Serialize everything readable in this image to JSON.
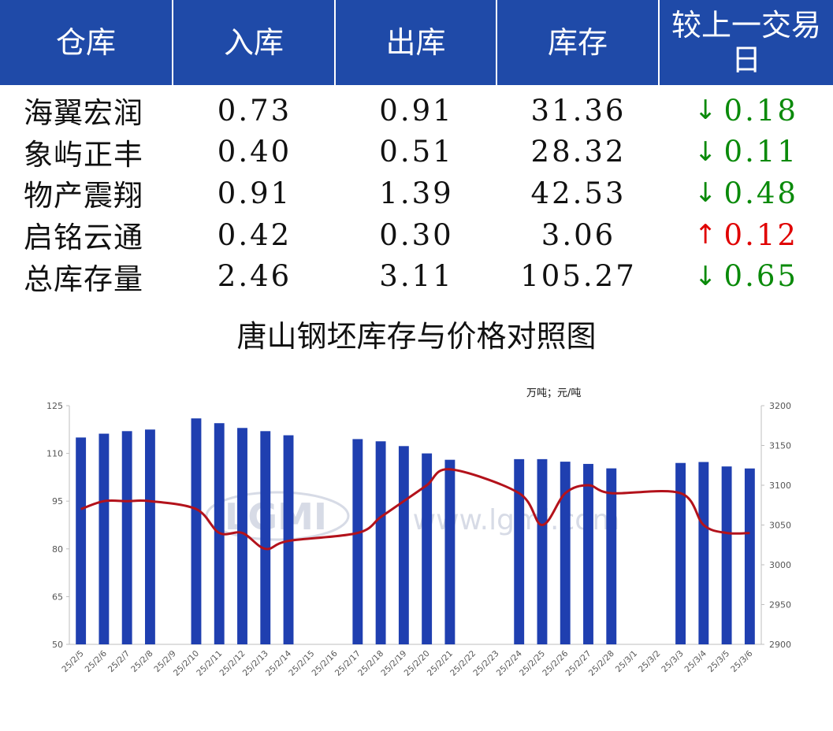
{
  "table": {
    "headers": [
      "仓库",
      "入库",
      "出库",
      "库存",
      "较上一交易日"
    ],
    "rows": [
      {
        "name": "海翼宏润",
        "in": "0.73",
        "out": "0.91",
        "stock": "31.36",
        "dir": "down",
        "arrow": "↓",
        "change": "0.18"
      },
      {
        "name": "象屿正丰",
        "in": "0.40",
        "out": "0.51",
        "stock": "28.32",
        "dir": "down",
        "arrow": "↓",
        "change": "0.11"
      },
      {
        "name": "物产震翔",
        "in": "0.91",
        "out": "1.39",
        "stock": "42.53",
        "dir": "down",
        "arrow": "↓",
        "change": "0.48"
      },
      {
        "name": "启铭云通",
        "in": "0.42",
        "out": "0.30",
        "stock": "3.06",
        "dir": "up",
        "arrow": "↑",
        "change": "0.12"
      },
      {
        "name": "总库存量",
        "in": "2.46",
        "out": "3.11",
        "stock": "105.27",
        "dir": "down",
        "arrow": "↓",
        "change": "0.65"
      }
    ],
    "colors": {
      "header_bg": "#1f4aa8",
      "down": "#0a8a0a",
      "up": "#e00000"
    }
  },
  "chart_data": {
    "type": "bar+line",
    "title": "唐山钢坯库存与价格对照图",
    "units_label": "万吨；元/吨",
    "categories": [
      "25/2/5",
      "25/2/6",
      "25/2/7",
      "25/2/8",
      "25/2/9",
      "25/2/10",
      "25/2/11",
      "25/2/12",
      "25/2/13",
      "25/2/14",
      "25/2/15",
      "25/2/16",
      "25/2/17",
      "25/2/18",
      "25/2/19",
      "25/2/20",
      "25/2/21",
      "25/2/22",
      "25/2/23",
      "25/2/24",
      "25/2/25",
      "25/2/26",
      "25/2/27",
      "25/2/28",
      "25/3/1",
      "25/3/2",
      "25/3/3",
      "25/3/4",
      "25/3/5",
      "25/3/6"
    ],
    "y_left": {
      "ticks": [
        50,
        65,
        80,
        95,
        110,
        125
      ],
      "min": 50,
      "max": 125
    },
    "y_right": {
      "ticks": [
        2900,
        2950,
        3000,
        3050,
        3100,
        3150,
        3200
      ],
      "min": 2900,
      "max": 3200
    },
    "bar_color": "#1f3fb0",
    "line_color": "#b3121b",
    "bars": [
      115,
      116.2,
      117,
      117.5,
      null,
      121,
      119.5,
      118,
      117,
      115.7,
      null,
      null,
      114.5,
      113.8,
      112.3,
      110,
      108,
      null,
      null,
      108.2,
      108.2,
      107.4,
      106.7,
      105.3,
      null,
      null,
      107,
      107.3,
      105.9,
      105.27
    ],
    "line": [
      3070,
      3080,
      3080,
      3080,
      null,
      3070,
      3040,
      3040,
      3020,
      3030,
      null,
      null,
      3040,
      3060,
      3080,
      3100,
      3120,
      null,
      null,
      3090,
      3050,
      3090,
      3100,
      3090,
      null,
      null,
      3090,
      3050,
      3040,
      3040
    ],
    "watermark": "www.lgmi.com"
  }
}
